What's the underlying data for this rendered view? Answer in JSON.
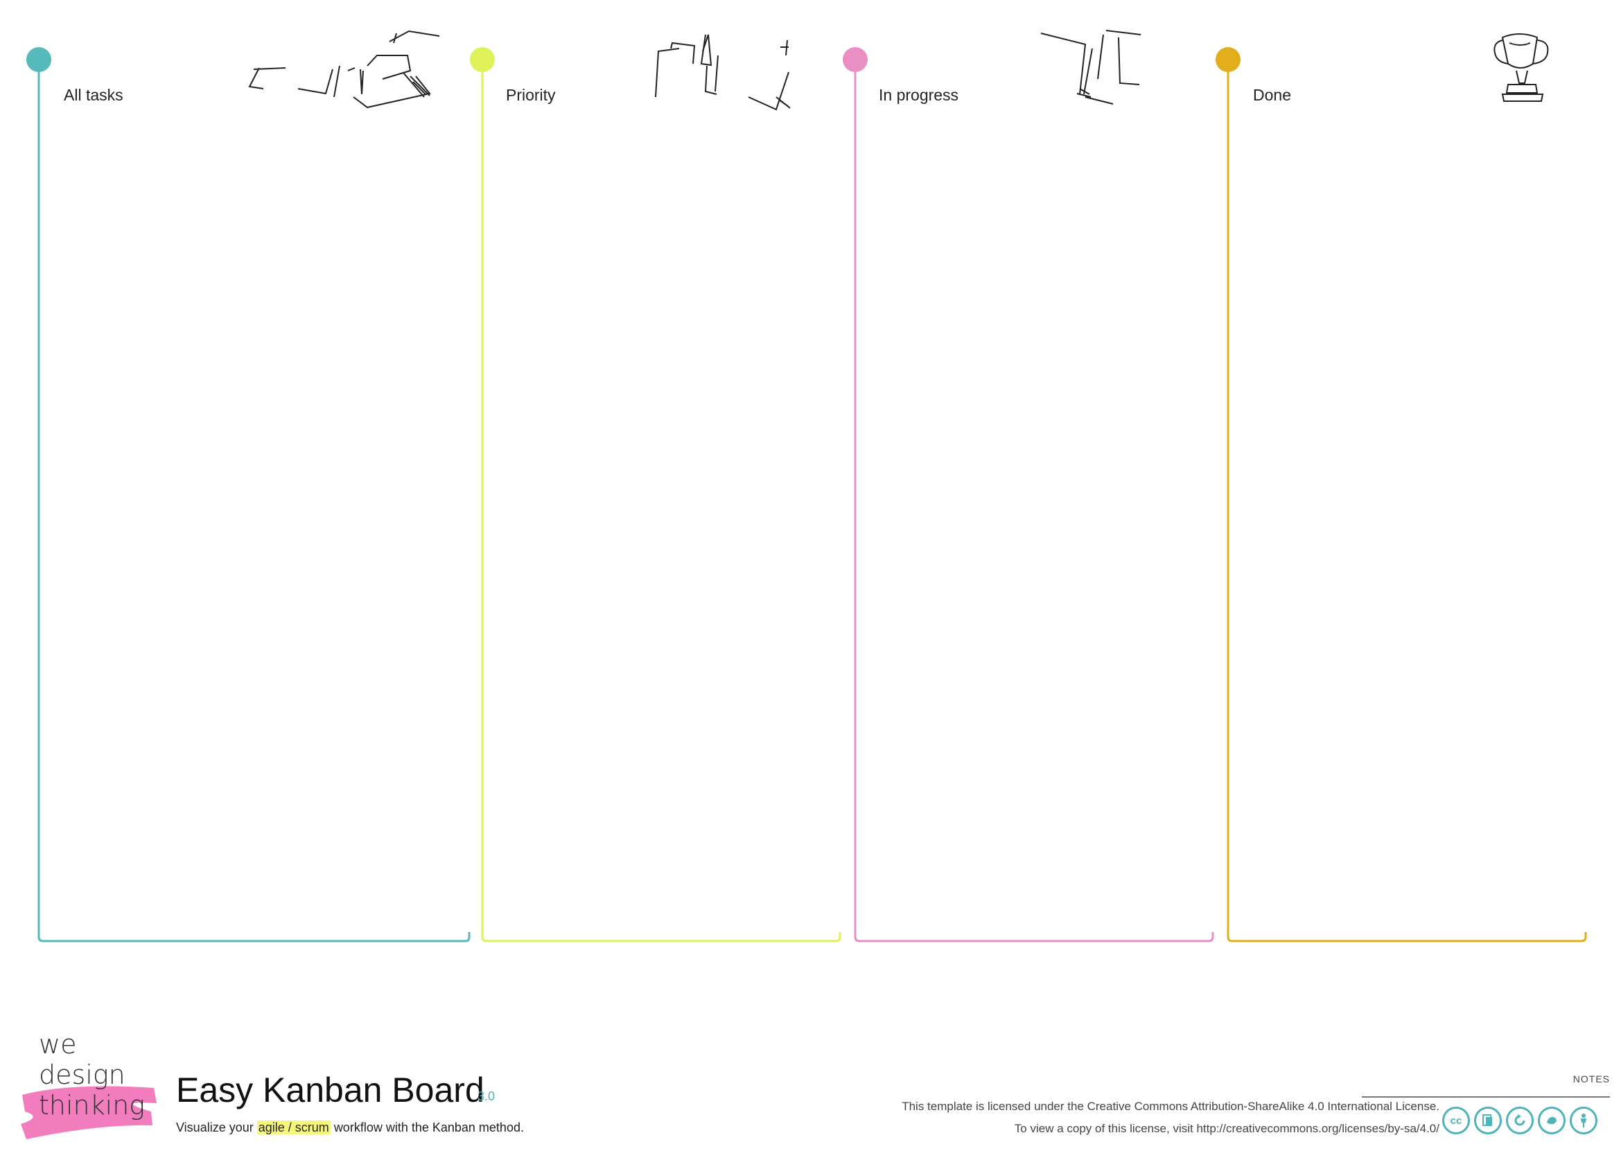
{
  "columns": [
    {
      "id": "all-tasks",
      "title": "All tasks",
      "color": "#56b9ba",
      "sketch": "sticky-notes-icon"
    },
    {
      "id": "priority",
      "title": "Priority",
      "color": "#dff25a",
      "sketch": "sticky-notes-flag-icon"
    },
    {
      "id": "in-progress",
      "title": "In progress",
      "color": "#ea8fc4",
      "sketch": "sticky-notes-icon"
    },
    {
      "id": "done",
      "title": "Done",
      "color": "#e3ae1c",
      "sketch": "trophy-icon"
    }
  ],
  "footer": {
    "logo": {
      "line1": "we",
      "line2": "design",
      "line3": "thinking",
      "brush_color": "#ef6fb8"
    },
    "title": "Easy Kanban Board",
    "version": "3.0",
    "subtitle_before": "Visualize your",
    "subtitle_highlight": "agile / scrum",
    "subtitle_after": "workflow with the Kanban method.",
    "license_line1": "This template is licensed under the Creative Commons Attribution-ShareAlike 4.0 International License.",
    "license_line2": "To view a copy of this license, visit http://creativecommons.org/licenses/by-sa/4.0/",
    "notes_label": "NOTES",
    "cc_icons": [
      "cc-icon",
      "by-sa-icon",
      "sharealike-icon",
      "noncommercial-icon",
      "attribution-icon"
    ],
    "accent_color": "#4fb3b8"
  }
}
